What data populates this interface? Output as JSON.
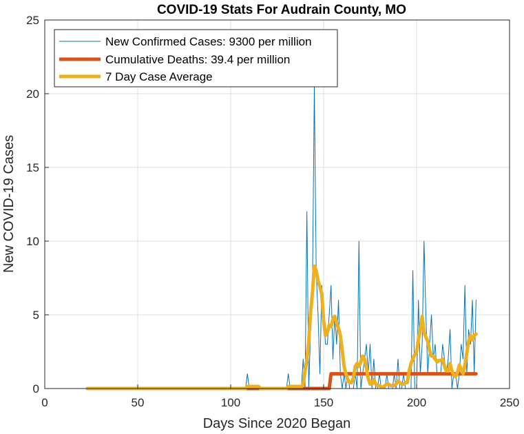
{
  "chart_data": {
    "type": "line",
    "title": "COVID-19 Stats For Audrain County, MO",
    "xlabel": "Days Since 2020 Began",
    "ylabel": "New COVID-19 Cases",
    "xlim": [
      0,
      250
    ],
    "ylim": [
      0,
      25
    ],
    "xticks": [
      0,
      50,
      100,
      150,
      200,
      250
    ],
    "yticks": [
      0,
      5,
      10,
      15,
      20,
      25
    ],
    "grid": true,
    "legend_position": "top-left",
    "series": [
      {
        "name": "New Confirmed Cases: 9300 per million",
        "color": "#0072BD",
        "width": 1,
        "x": [
          23,
          60,
          108,
          109,
          110,
          111,
          130,
          131,
          132,
          138,
          139,
          140,
          141,
          142,
          143,
          144,
          145,
          146,
          147,
          148,
          149,
          150,
          151,
          152,
          153,
          154,
          155,
          156,
          157,
          158,
          159,
          160,
          161,
          162,
          163,
          164,
          165,
          166,
          167,
          168,
          169,
          170,
          171,
          172,
          173,
          174,
          175,
          176,
          177,
          178,
          179,
          180,
          181,
          182,
          183,
          184,
          185,
          186,
          187,
          188,
          189,
          190,
          191,
          192,
          193,
          194,
          195,
          196,
          197,
          198,
          199,
          200,
          201,
          202,
          203,
          204,
          205,
          206,
          207,
          208,
          209,
          210,
          211,
          212,
          213,
          214,
          215,
          216,
          217,
          218,
          219,
          220,
          221,
          222,
          223,
          224,
          225,
          226,
          227,
          228,
          229,
          230,
          231,
          232
        ],
        "y": [
          0,
          0,
          0,
          1,
          0,
          0,
          0,
          1,
          0,
          0,
          2,
          0,
          12,
          0,
          4,
          7,
          20.5,
          8,
          5,
          1,
          7,
          5,
          3,
          3,
          5,
          7,
          2,
          5,
          3,
          6,
          1,
          0,
          1,
          0,
          1,
          0,
          0,
          0,
          1,
          0,
          10,
          0,
          1,
          2,
          3,
          1,
          3,
          0,
          2,
          0,
          0,
          1,
          0,
          0,
          0,
          1,
          0,
          0,
          0,
          1,
          0,
          2,
          0,
          0,
          1,
          0,
          0,
          0,
          0,
          8,
          0,
          0,
          6,
          1,
          3,
          10,
          5,
          1,
          3,
          5,
          2,
          3,
          1,
          1,
          1,
          3,
          2,
          1,
          2,
          4,
          0,
          1,
          1,
          0,
          1,
          3,
          2,
          7,
          1,
          4,
          3,
          6,
          1,
          6
        ]
      },
      {
        "name": "Cumulative Deaths: 39.4 per million",
        "color": "#D95319",
        "width": 5,
        "x": [
          23,
          110,
          111,
          112,
          114,
          116,
          135,
          136,
          137,
          138,
          139,
          152,
          153,
          154,
          232
        ],
        "y": [
          0,
          0,
          0,
          0,
          0,
          0,
          0,
          0,
          0,
          0,
          0,
          0,
          0,
          1,
          1
        ]
      },
      {
        "name": "7 Day Case Average",
        "color": "#EDB120",
        "width": 5,
        "x": [
          23,
          108,
          109,
          115,
          116,
          117,
          130,
          131,
          137,
          138,
          139,
          140,
          141,
          142,
          143,
          144,
          145,
          146,
          147,
          148,
          149,
          150,
          151,
          152,
          153,
          154,
          155,
          156,
          157,
          158,
          159,
          160,
          161,
          162,
          163,
          164,
          165,
          166,
          167,
          168,
          169,
          170,
          171,
          172,
          173,
          174,
          175,
          176,
          177,
          178,
          179,
          180,
          181,
          182,
          183,
          184,
          185,
          186,
          187,
          188,
          189,
          190,
          191,
          192,
          193,
          194,
          195,
          196,
          197,
          198,
          199,
          200,
          201,
          202,
          203,
          204,
          205,
          206,
          207,
          208,
          209,
          210,
          211,
          212,
          213,
          214,
          215,
          216,
          217,
          218,
          219,
          220,
          221,
          222,
          223,
          224,
          225,
          226,
          227,
          228,
          229,
          230,
          231,
          232
        ],
        "y": [
          0,
          0,
          0.14,
          0.14,
          0,
          0,
          0,
          0.14,
          0.14,
          0.1,
          0.3,
          1.2,
          2.0,
          3.2,
          5.2,
          6.5,
          8.3,
          8.0,
          7.3,
          6.9,
          6.4,
          4.6,
          3.6,
          3.8,
          4.3,
          4.2,
          4.7,
          4.9,
          4.5,
          4.1,
          3.6,
          2.6,
          1.5,
          1.0,
          0.6,
          0.4,
          0.4,
          0.7,
          1.5,
          1.7,
          1.5,
          1.8,
          2.2,
          2.0,
          1.4,
          0.7,
          0.3,
          0.3,
          0.6,
          0.3,
          0.2,
          0.2,
          0.1,
          0.1,
          0.2,
          0.3,
          0.3,
          0.2,
          0.2,
          0.2,
          0.3,
          0.5,
          0.4,
          0.3,
          0.3,
          0.4,
          0.4,
          1.2,
          1.7,
          2.0,
          2.3,
          2.5,
          3.3,
          4.0,
          4.9,
          3.8,
          3.5,
          3.2,
          2.6,
          2.2,
          2.2,
          2.0,
          1.8,
          1.9,
          1.9,
          2.0,
          1.5,
          1.2,
          1.2,
          1.7,
          1.2,
          0.9,
          0.8,
          1.1,
          1.6,
          1.3,
          1.0,
          1.6,
          2.4,
          3.2,
          3.6,
          3.3,
          3.6,
          3.7
        ]
      }
    ]
  }
}
